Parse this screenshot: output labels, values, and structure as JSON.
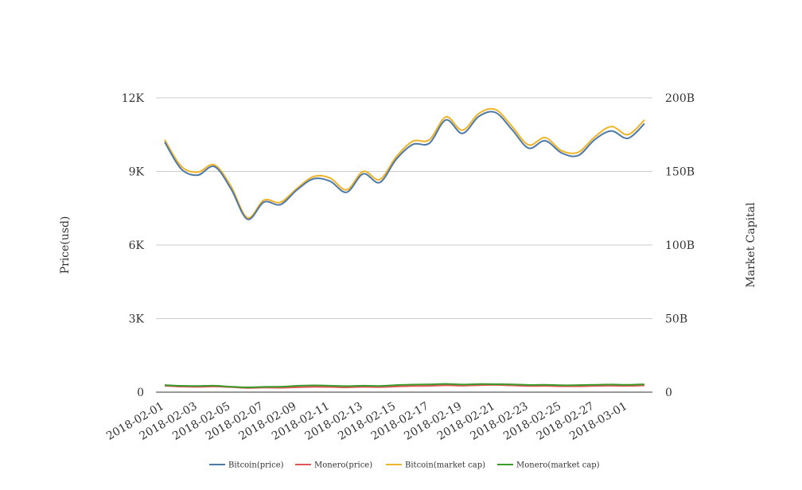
{
  "chart_data": {
    "type": "line",
    "x": [
      "2018-02-01",
      "2018-02-02",
      "2018-02-03",
      "2018-02-04",
      "2018-02-05",
      "2018-02-06",
      "2018-02-07",
      "2018-02-08",
      "2018-02-09",
      "2018-02-10",
      "2018-02-11",
      "2018-02-12",
      "2018-02-13",
      "2018-02-14",
      "2018-02-15",
      "2018-02-16",
      "2018-02-17",
      "2018-02-18",
      "2018-02-19",
      "2018-02-20",
      "2018-02-21",
      "2018-02-22",
      "2018-02-23",
      "2018-02-24",
      "2018-02-25",
      "2018-02-26",
      "2018-02-27",
      "2018-02-28",
      "2018-03-01",
      "2018-03-02"
    ],
    "x_tick_labels": [
      "2018-02-01",
      "2018-02-03",
      "2018-02-05",
      "2018-02-07",
      "2018-02-09",
      "2018-02-11",
      "2018-02-13",
      "2018-02-15",
      "2018-02-17",
      "2018-02-19",
      "2018-02-21",
      "2018-02-23",
      "2018-02-25",
      "2018-02-27",
      "2018-03-01"
    ],
    "y_left": {
      "label": "Price(usd)",
      "ylim": [
        0,
        12000
      ],
      "tick_values": [
        0,
        3000,
        6000,
        9000,
        12000
      ],
      "tick_labels": [
        "0",
        "3K",
        "6K",
        "9K",
        "12K"
      ]
    },
    "y_right": {
      "label": "Market Capital",
      "ylim": [
        0,
        200000000000
      ],
      "tick_values": [
        0,
        50000000000,
        100000000000,
        150000000000,
        200000000000
      ],
      "tick_labels": [
        "0",
        "50B",
        "100B",
        "150B",
        "200B"
      ]
    },
    "grid": true,
    "legend_position": "bottom",
    "series": [
      {
        "name": "Bitcoin(price)",
        "axis": "left",
        "color": "#4e79a7",
        "values": [
          10200,
          9100,
          8850,
          9200,
          8300,
          7050,
          7750,
          7650,
          8250,
          8700,
          8600,
          8150,
          8900,
          8550,
          9500,
          10100,
          10150,
          11100,
          10550,
          11250,
          11400,
          10700,
          9950,
          10250,
          9750,
          9650,
          10300,
          10650,
          10350,
          10950
        ]
      },
      {
        "name": "Monero(price)",
        "axis": "left",
        "color": "#e15759",
        "values": [
          260,
          225,
          215,
          230,
          205,
          170,
          185,
          180,
          200,
          215,
          210,
          195,
          215,
          205,
          230,
          250,
          255,
          280,
          265,
          285,
          295,
          275,
          250,
          255,
          240,
          240,
          255,
          265,
          255,
          275
        ]
      },
      {
        "name": "Bitcoin(market cap)",
        "axis": "right",
        "color": "#f0b429",
        "values": [
          171500000000,
          153500000000,
          149500000000,
          154500000000,
          140000000000,
          118500000000,
          130500000000,
          129000000000,
          138500000000,
          146500000000,
          145500000000,
          137500000000,
          150000000000,
          144500000000,
          160000000000,
          170500000000,
          171500000000,
          187000000000,
          178000000000,
          189500000000,
          192000000000,
          180500000000,
          168000000000,
          173000000000,
          164000000000,
          163000000000,
          173500000000,
          180500000000,
          175000000000,
          185000000000
        ]
      },
      {
        "name": "Monero(market cap)",
        "axis": "right",
        "color": "#3a9a2a",
        "values": [
          4800000000,
          4300000000,
          4200000000,
          4400000000,
          3700000000,
          3300000000,
          3600000000,
          3700000000,
          4300000000,
          4600000000,
          4400000000,
          4100000000,
          4400000000,
          4200000000,
          4800000000,
          5100000000,
          5300000000,
          5600000000,
          5200000000,
          5500000000,
          5400000000,
          5300000000,
          4900000000,
          5000000000,
          4700000000,
          4800000000,
          5000000000,
          5200000000,
          5000000000,
          5300000000
        ]
      }
    ]
  }
}
